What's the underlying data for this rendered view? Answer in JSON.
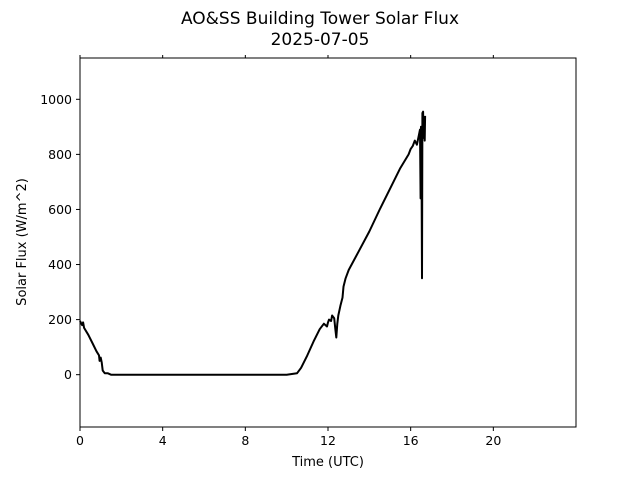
{
  "chart_data": {
    "type": "line",
    "title": "AO&SS Building Tower Solar Flux",
    "subtitle": "2025-07-05",
    "xlabel": "Time (UTC)",
    "ylabel": "Solar Flux (W/m^2)",
    "xlim": [
      0,
      24
    ],
    "ylim": [
      -190,
      1150
    ],
    "x_ticks": [
      0,
      4,
      8,
      12,
      16,
      20
    ],
    "x_tick_labels": [
      "0",
      "4",
      "8",
      "12",
      "16",
      "20"
    ],
    "y_ticks": [
      0,
      200,
      400,
      600,
      800,
      1000
    ],
    "y_tick_labels": [
      "0",
      "200",
      "400",
      "600",
      "800",
      "1000"
    ],
    "grid": false,
    "line_color": "#000000",
    "series": [
      {
        "x": [
          0,
          0.1,
          0.15,
          0.2,
          0.4,
          0.6,
          0.8,
          0.92,
          0.95,
          1.0,
          1.05,
          1.1,
          1.2,
          1.35,
          1.5,
          1.6,
          2,
          4,
          6,
          8,
          10,
          10.5,
          10.7,
          11,
          11.3,
          11.6,
          11.8,
          11.95,
          12.0,
          12.05,
          12.15,
          12.2,
          12.3,
          12.35,
          12.4,
          12.45,
          12.5,
          12.6,
          12.7,
          12.75,
          12.85,
          13.0,
          13.5,
          14.0,
          14.5,
          15.0,
          15.5,
          15.9,
          16.0,
          16.1,
          16.2,
          16.3,
          16.4,
          16.45,
          16.48,
          16.5,
          16.52,
          16.55,
          16.57,
          16.6,
          16.62,
          16.65,
          16.68,
          16.7
        ],
        "y": [
          195,
          180,
          190,
          170,
          145,
          115,
          85,
          70,
          50,
          62,
          45,
          15,
          5,
          5,
          0,
          0,
          0,
          0,
          0,
          0,
          0,
          5,
          25,
          70,
          120,
          165,
          185,
          175,
          190,
          200,
          195,
          215,
          205,
          170,
          135,
          185,
          215,
          250,
          280,
          320,
          350,
          380,
          450,
          520,
          600,
          675,
          750,
          800,
          820,
          830,
          850,
          835,
          870,
          890,
          640,
          900,
          880,
          350,
          950,
          955,
          860,
          920,
          850,
          940
        ]
      }
    ]
  }
}
